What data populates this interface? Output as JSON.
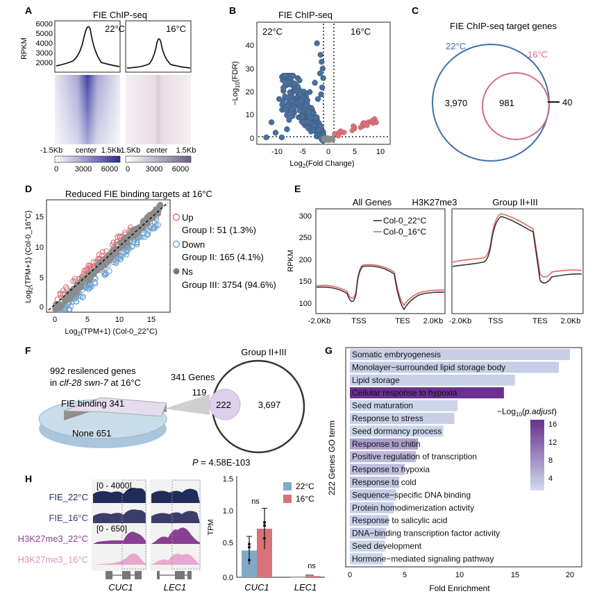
{
  "colors": {
    "blue": "#3f6fb0",
    "navy": "#1f2d5a",
    "red": "#d9717a",
    "pink": "#cf6b86",
    "purple": "#6a2f8f",
    "lightblue": "#cfdcee",
    "gray": "#999999"
  },
  "panel_labels": [
    "A",
    "B",
    "C",
    "D",
    "E",
    "F",
    "G",
    "H"
  ],
  "A": {
    "title": "FIE ChIP-seq",
    "ylabel": "RPKM",
    "yticks": [
      "6000",
      "5000",
      "4000",
      "3000",
      "2000"
    ],
    "cond1": "22°C",
    "cond2": "16°C",
    "xticks": [
      "-1.5Kb",
      "center",
      "1.5Kb"
    ],
    "xticks2": [
      "-1.5Kb",
      "center",
      "1.5Kb"
    ],
    "cbar1": [
      "0",
      "3000",
      "6000"
    ],
    "cbar2": [
      "0",
      "3000",
      "6000"
    ]
  },
  "B": {
    "title": "FIE ChIP-seq",
    "left": "22°C",
    "right": "16°C",
    "ylabel_pre": "−Log",
    "ylabel_sub": "10",
    "ylabel_post": "(FDR)",
    "xlabel_pre": "Log",
    "xlabel_sub": "2",
    "xlabel_post": "(Fold Change)",
    "yticks": [
      "40",
      "30",
      "20",
      "10",
      "0"
    ],
    "xticks": [
      "-10",
      "-5",
      "0",
      "5",
      "10"
    ]
  },
  "C": {
    "title": "FIE ChIP-seq target genes",
    "set1": "22°C",
    "set2": "16°C",
    "only1": "3,970",
    "both": "981",
    "only2": "40"
  },
  "D": {
    "title": "Reduced FIE binding targets at 16°C",
    "ylabel_pre": "Log",
    "ylabel_sub": "2",
    "ylabel_post": "(TPM+1)  (Col-0_16°C)",
    "xlabel_pre": "Log",
    "xlabel_sub": "2",
    "xlabel_post": "(TPM+1)  (Col-0_22°C)",
    "ticks": [
      "0",
      "5",
      "10",
      "15"
    ],
    "legend": [
      {
        "key": "Up",
        "desc": "Group I: 51 (1.3%)"
      },
      {
        "key": "Down",
        "desc": "Group II: 165 (4.1%)"
      },
      {
        "key": "Ns",
        "desc": "Group III: 3754 (94.6%)"
      }
    ]
  },
  "E": {
    "t1": "All Genes",
    "t2": "H3K27me3",
    "t3": "Group II+III",
    "ylabel": "RPKM",
    "yticks": [
      "300",
      "250",
      "200",
      "150",
      "100"
    ],
    "leg1": "Col-0_22°C",
    "leg2": "Col-0_16°C",
    "xticks": [
      "-2.0Kb",
      "TSS",
      "TES",
      "2.0Kb"
    ],
    "xticks2": [
      "-2.0Kb",
      "TSS",
      "TES",
      "2.0Kb"
    ]
  },
  "F": {
    "pie_title1": "992 resilenced genes",
    "pie_title2_pre": "in ",
    "pie_title2_it": "clf-28 swn-7",
    "pie_title2_post": " at 16°C",
    "binding": "FIE binding 341",
    "none": "None 651",
    "genes": "341 Genes",
    "group": "Group II+III",
    "only_a": "119",
    "both": "222",
    "only_b": "3,697",
    "p_pre": "P",
    "p_post": " = 4.58E-103"
  },
  "G": {
    "ylabel": "222 Genes GO term",
    "xlabel": "Fold Enrichment",
    "xticks": [
      "0",
      "5",
      "10",
      "15",
      "20"
    ],
    "legend_pre": "−Log",
    "legend_sub": "10",
    "legend_post": "(p.adjust)",
    "legend_ticks": [
      "16",
      "12",
      "8",
      "4"
    ],
    "terms": [
      {
        "name": "Somatic embryogenesis",
        "fold": 20.0,
        "logp": 3.2
      },
      {
        "name": "Monolayer−surrounded lipid storage body",
        "fold": 19.0,
        "logp": 3.3
      },
      {
        "name": "Lipid storage",
        "fold": 15.0,
        "logp": 3.0
      },
      {
        "name": "Cellular response to hypoxia",
        "fold": 14.0,
        "logp": 17.0
      },
      {
        "name": "Seed maturation",
        "fold": 9.8,
        "logp": 2.6
      },
      {
        "name": "Response to stress",
        "fold": 9.5,
        "logp": 3.0
      },
      {
        "name": "Seed dormancy process",
        "fold": 8.5,
        "logp": 2.5
      },
      {
        "name": "Response to chitin",
        "fold": 6.2,
        "logp": 7.5
      },
      {
        "name": "Positive regulation of transcription",
        "fold": 6.0,
        "logp": 5.0
      },
      {
        "name": "Response to hypoxia",
        "fold": 5.0,
        "logp": 4.5
      },
      {
        "name": "Response to cold",
        "fold": 4.5,
        "logp": 4.0
      },
      {
        "name": "Sequence−specific DNA binding",
        "fold": 4.2,
        "logp": 3.5
      },
      {
        "name": "Protein homodimerization activity",
        "fold": 4.0,
        "logp": 3.0
      },
      {
        "name": "Response to salicylic acid",
        "fold": 3.5,
        "logp": 3.0
      },
      {
        "name": "DNA−binding transcription factor activity",
        "fold": 3.3,
        "logp": 3.5
      },
      {
        "name": "Seed development",
        "fold": 3.2,
        "logp": 2.5
      },
      {
        "name": "Hormone−mediated signaling pathway",
        "fold": 3.0,
        "logp": 2.5
      }
    ]
  },
  "H": {
    "tracks": [
      "FIE_22°C",
      "FIE_16°C",
      "H3K27me3_22°C",
      "H3K27me3_16°C"
    ],
    "range1": "[0 - 4000]",
    "range2": "[0 - 650]",
    "genes": [
      "CUC1",
      "LEC1"
    ],
    "genes2": [
      "CUC1",
      "LEC1"
    ],
    "ylabel": "TPM",
    "yticks": [
      "1.5",
      "1.0",
      "0.5",
      "0.0"
    ],
    "legend": [
      "22°C",
      "16°C"
    ],
    "ns": [
      "ns",
      "ns"
    ]
  },
  "chart_data": [
    {
      "type": "bar",
      "panel": "G",
      "title": "222 Genes GO term",
      "xlabel": "Fold Enrichment",
      "xlim": [
        0,
        21
      ]
    },
    {
      "type": "bar",
      "panel": "H",
      "categories": [
        "CUC1",
        "LEC1"
      ],
      "series": [
        {
          "name": "22°C",
          "values": [
            0.42,
            0.0
          ]
        },
        {
          "name": "16°C",
          "values": [
            0.76,
            0.02
          ]
        }
      ],
      "ylabel": "TPM",
      "ylim": [
        0,
        1.5
      ]
    },
    {
      "type": "line",
      "panel": "E",
      "x": [
        "-2.0Kb",
        "TSS",
        "TES",
        "2.0Kb"
      ],
      "ylabel": "RPKM",
      "ylim": [
        90,
        310
      ]
    }
  ]
}
